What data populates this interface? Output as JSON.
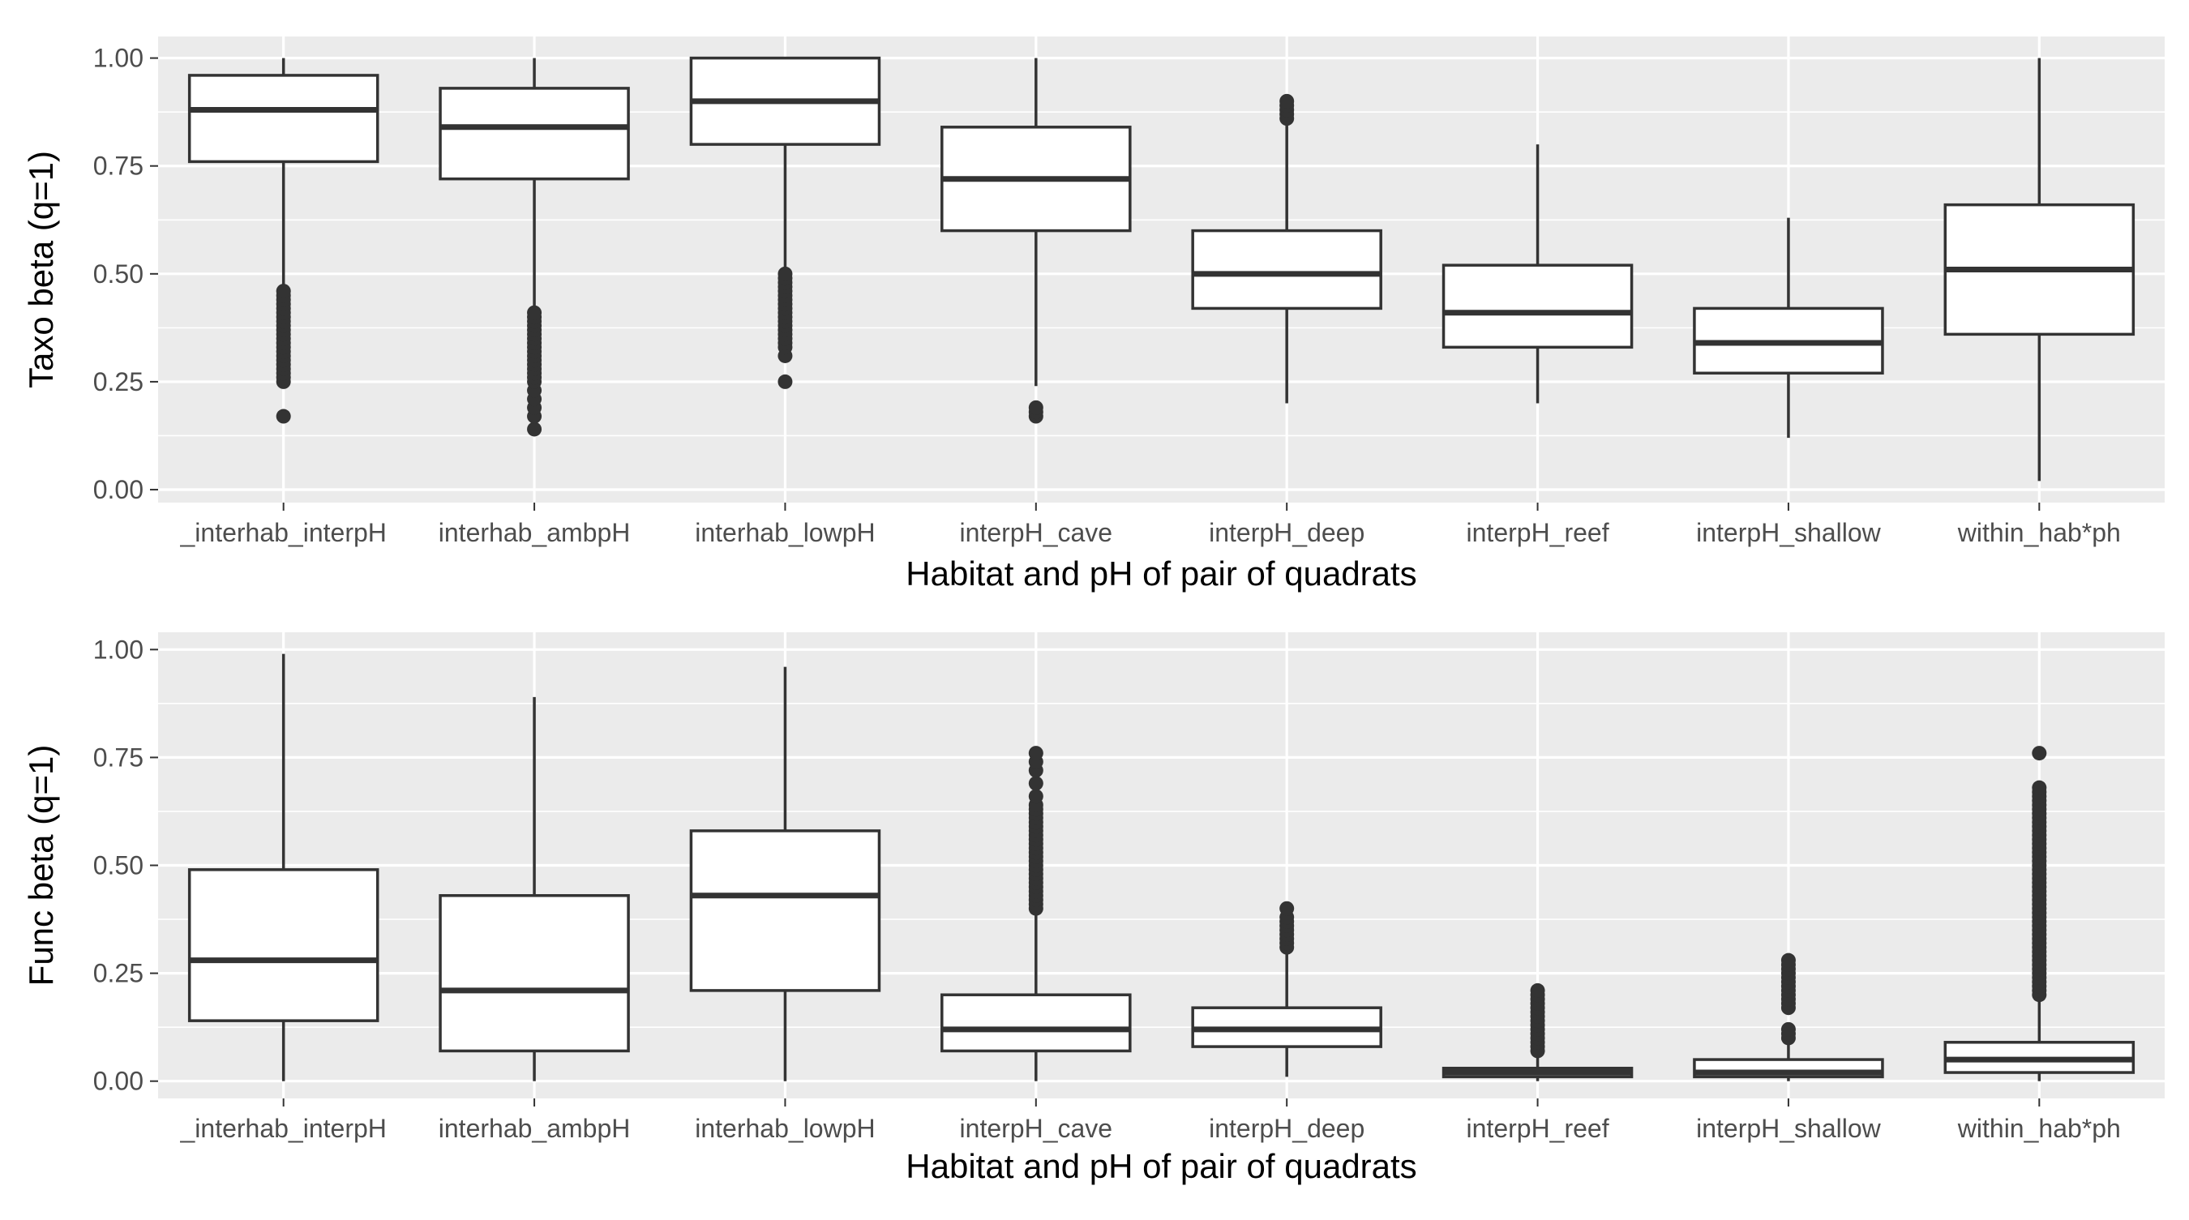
{
  "chart_data": [
    {
      "type": "boxplot",
      "xlabel": "Habitat and pH of pair of quadrats",
      "ylabel": "Taxo beta (q=1)",
      "ylim": [
        -0.03,
        1.05
      ],
      "yticks": [
        0.0,
        0.25,
        0.5,
        0.75,
        1.0
      ],
      "ytick_labels": [
        "0.00",
        "0.25",
        "0.50",
        "0.75",
        "1.00"
      ],
      "grid": true,
      "categories": [
        "_interhab_interpH",
        "interhab_ambpH",
        "interhab_lowpH",
        "interpH_cave",
        "interpH_deep",
        "interpH_reef",
        "interpH_shallow",
        "within_hab*ph"
      ],
      "boxes": [
        {
          "whisker_low": 0.47,
          "q1": 0.76,
          "median": 0.88,
          "q3": 0.96,
          "whisker_high": 1.0,
          "outliers": [
            0.17,
            0.25,
            0.26,
            0.27,
            0.28,
            0.29,
            0.3,
            0.31,
            0.32,
            0.33,
            0.34,
            0.35,
            0.36,
            0.37,
            0.38,
            0.39,
            0.4,
            0.41,
            0.42,
            0.43,
            0.44,
            0.45,
            0.46
          ]
        },
        {
          "whisker_low": 0.42,
          "q1": 0.72,
          "median": 0.84,
          "q3": 0.93,
          "whisker_high": 1.0,
          "outliers": [
            0.14,
            0.17,
            0.19,
            0.21,
            0.23,
            0.25,
            0.26,
            0.27,
            0.28,
            0.29,
            0.3,
            0.31,
            0.32,
            0.33,
            0.34,
            0.35,
            0.36,
            0.37,
            0.38,
            0.39,
            0.4,
            0.41
          ]
        },
        {
          "whisker_low": 0.51,
          "q1": 0.8,
          "median": 0.9,
          "q3": 1.0,
          "whisker_high": 1.0,
          "outliers": [
            0.25,
            0.31,
            0.33,
            0.34,
            0.35,
            0.36,
            0.37,
            0.38,
            0.39,
            0.4,
            0.41,
            0.42,
            0.43,
            0.44,
            0.45,
            0.46,
            0.47,
            0.48,
            0.49,
            0.5
          ]
        },
        {
          "whisker_low": 0.24,
          "q1": 0.6,
          "median": 0.72,
          "q3": 0.84,
          "whisker_high": 1.0,
          "outliers": [
            0.17,
            0.18,
            0.19
          ]
        },
        {
          "whisker_low": 0.2,
          "q1": 0.42,
          "median": 0.5,
          "q3": 0.6,
          "whisker_high": 0.85,
          "outliers": [
            0.86,
            0.87,
            0.88,
            0.89,
            0.9
          ]
        },
        {
          "whisker_low": 0.2,
          "q1": 0.33,
          "median": 0.41,
          "q3": 0.52,
          "whisker_high": 0.8,
          "outliers": []
        },
        {
          "whisker_low": 0.12,
          "q1": 0.27,
          "median": 0.34,
          "q3": 0.42,
          "whisker_high": 0.63,
          "outliers": []
        },
        {
          "whisker_low": 0.02,
          "q1": 0.36,
          "median": 0.51,
          "q3": 0.66,
          "whisker_high": 1.0,
          "outliers": []
        }
      ]
    },
    {
      "type": "boxplot",
      "xlabel": "Habitat and pH of pair of quadrats",
      "ylabel": "Func beta (q=1)",
      "ylim": [
        -0.04,
        1.04
      ],
      "yticks": [
        0.0,
        0.25,
        0.5,
        0.75,
        1.0
      ],
      "ytick_labels": [
        "0.00",
        "0.25",
        "0.50",
        "0.75",
        "1.00"
      ],
      "grid": true,
      "categories": [
        "_interhab_interpH",
        "interhab_ambpH",
        "interhab_lowpH",
        "interpH_cave",
        "interpH_deep",
        "interpH_reef",
        "interpH_shallow",
        "within_hab*ph"
      ],
      "boxes": [
        {
          "whisker_low": 0.0,
          "q1": 0.14,
          "median": 0.28,
          "q3": 0.49,
          "whisker_high": 0.99,
          "outliers": []
        },
        {
          "whisker_low": 0.0,
          "q1": 0.07,
          "median": 0.21,
          "q3": 0.43,
          "whisker_high": 0.89,
          "outliers": []
        },
        {
          "whisker_low": 0.0,
          "q1": 0.21,
          "median": 0.43,
          "q3": 0.58,
          "whisker_high": 0.96,
          "outliers": []
        },
        {
          "whisker_low": 0.0,
          "q1": 0.07,
          "median": 0.12,
          "q3": 0.2,
          "whisker_high": 0.39,
          "outliers": [
            0.4,
            0.41,
            0.42,
            0.43,
            0.44,
            0.45,
            0.46,
            0.47,
            0.48,
            0.49,
            0.5,
            0.51,
            0.52,
            0.53,
            0.54,
            0.55,
            0.56,
            0.57,
            0.58,
            0.59,
            0.6,
            0.61,
            0.62,
            0.63,
            0.64,
            0.66,
            0.69,
            0.72,
            0.74,
            0.76
          ]
        },
        {
          "whisker_low": 0.01,
          "q1": 0.08,
          "median": 0.12,
          "q3": 0.17,
          "whisker_high": 0.3,
          "outliers": [
            0.31,
            0.32,
            0.33,
            0.34,
            0.35,
            0.36,
            0.37,
            0.38,
            0.4
          ]
        },
        {
          "whisker_low": 0.0,
          "q1": 0.01,
          "median": 0.02,
          "q3": 0.03,
          "whisker_high": 0.06,
          "outliers": [
            0.07,
            0.08,
            0.09,
            0.1,
            0.11,
            0.12,
            0.13,
            0.14,
            0.15,
            0.16,
            0.17,
            0.18,
            0.19,
            0.2,
            0.21
          ]
        },
        {
          "whisker_low": 0.0,
          "q1": 0.01,
          "median": 0.02,
          "q3": 0.05,
          "whisker_high": 0.09,
          "outliers": [
            0.1,
            0.11,
            0.12,
            0.17,
            0.18,
            0.19,
            0.2,
            0.21,
            0.22,
            0.23,
            0.24,
            0.25,
            0.26,
            0.27,
            0.28
          ]
        },
        {
          "whisker_low": 0.0,
          "q1": 0.02,
          "median": 0.05,
          "q3": 0.09,
          "whisker_high": 0.19,
          "outliers": [
            0.2,
            0.21,
            0.22,
            0.23,
            0.24,
            0.25,
            0.26,
            0.27,
            0.28,
            0.29,
            0.3,
            0.31,
            0.32,
            0.33,
            0.34,
            0.35,
            0.36,
            0.37,
            0.38,
            0.39,
            0.4,
            0.41,
            0.42,
            0.43,
            0.44,
            0.45,
            0.46,
            0.47,
            0.48,
            0.49,
            0.5,
            0.51,
            0.52,
            0.53,
            0.54,
            0.55,
            0.56,
            0.57,
            0.58,
            0.59,
            0.6,
            0.61,
            0.62,
            0.63,
            0.64,
            0.65,
            0.66,
            0.67,
            0.68,
            0.76
          ]
        }
      ]
    }
  ],
  "colors": {
    "panel_background": "#ebebeb",
    "grid": "#ffffff",
    "box_fill": "#ffffff",
    "box_stroke": "#333333",
    "tick_label": "#4d4d4d",
    "axis_title": "#000000"
  }
}
